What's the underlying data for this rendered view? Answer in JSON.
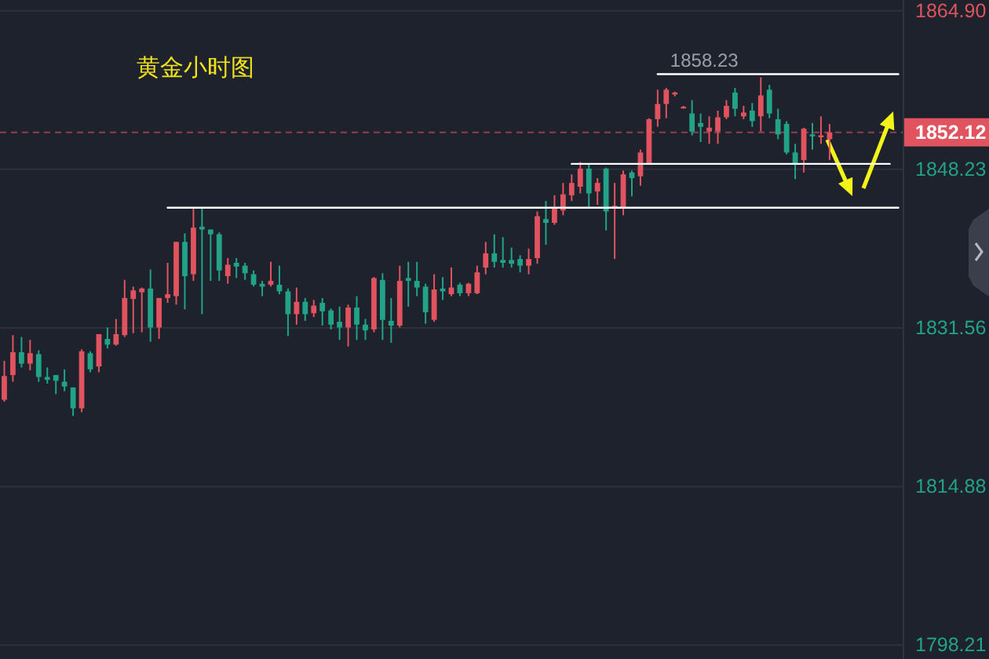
{
  "chart_data": {
    "type": "candlestick",
    "title": "黄金小时图",
    "categories": [
      null,
      null,
      null,
      null,
      null,
      null,
      null,
      null,
      null,
      null,
      null,
      null,
      null,
      null,
      null,
      null,
      null,
      null,
      null,
      null,
      null,
      null,
      null,
      null,
      null,
      null,
      null,
      null,
      null,
      null,
      null,
      null,
      null,
      null,
      null,
      null,
      null,
      null,
      null,
      null,
      null,
      null,
      null,
      null,
      null,
      null,
      null,
      null,
      null,
      null,
      null,
      null,
      null,
      null,
      null,
      null,
      null,
      null,
      null,
      null,
      null,
      null,
      null,
      null,
      null,
      null,
      null,
      null,
      null,
      null,
      null,
      null,
      null,
      null,
      null,
      null,
      null,
      null,
      null,
      null,
      null,
      null,
      null,
      null,
      null,
      null,
      null,
      null,
      null,
      null,
      null,
      null,
      null,
      null,
      null,
      null,
      null,
      null,
      null,
      null,
      null,
      null,
      null,
      null,
      null
    ],
    "ohlc": [
      [
        1824.0,
        1828.1,
        1823.8,
        1826.5
      ],
      [
        1826.6,
        1830.8,
        1825.9,
        1829.0
      ],
      [
        1829.0,
        1830.6,
        1827.4,
        1827.8
      ],
      [
        1827.8,
        1830.3,
        1827.1,
        1828.9
      ],
      [
        1828.8,
        1829.2,
        1825.9,
        1826.4
      ],
      [
        1826.4,
        1827.4,
        1825.7,
        1826.1
      ],
      [
        1826.6,
        1826.6,
        1824.6,
        1826.0
      ],
      [
        1825.9,
        1827.2,
        1824.9,
        1825.4
      ],
      [
        1825.3,
        1825.3,
        1822.3,
        1823.1
      ],
      [
        1823.1,
        1829.3,
        1822.7,
        1829.1
      ],
      [
        1828.9,
        1829.1,
        1826.9,
        1827.2
      ],
      [
        1827.5,
        1830.9,
        1826.9,
        1830.9
      ],
      [
        1830.4,
        1831.6,
        1829.4,
        1829.8
      ],
      [
        1829.8,
        1832.5,
        1829.7,
        1830.9
      ],
      [
        1830.8,
        1836.6,
        1830.6,
        1834.7
      ],
      [
        1834.6,
        1835.9,
        1831.0,
        1835.5
      ],
      [
        1835.3,
        1835.8,
        1831.1,
        1835.7
      ],
      [
        1835.7,
        1837.7,
        1830.1,
        1831.6
      ],
      [
        1831.6,
        1834.7,
        1830.4,
        1834.7
      ],
      [
        1834.7,
        1838.4,
        1834.2,
        1835.1
      ],
      [
        1834.9,
        1840.6,
        1834.0,
        1840.6
      ],
      [
        1840.6,
        1841.5,
        1833.5,
        1837.0
      ],
      [
        1837.2,
        1844.1,
        1836.5,
        1842.1
      ],
      [
        1842.2,
        1844.1,
        1833.0,
        1841.9
      ],
      [
        1841.9,
        1841.9,
        1836.5,
        1841.4
      ],
      [
        1841.4,
        1841.6,
        1836.5,
        1837.6
      ],
      [
        1837.0,
        1838.9,
        1836.2,
        1838.2
      ],
      [
        1838.4,
        1838.9,
        1836.8,
        1838.0
      ],
      [
        1838.1,
        1838.4,
        1836.6,
        1837.3
      ],
      [
        1837.2,
        1837.6,
        1835.9,
        1836.1
      ],
      [
        1836.2,
        1836.5,
        1834.9,
        1835.9
      ],
      [
        1836.1,
        1838.5,
        1835.9,
        1836.5
      ],
      [
        1836.1,
        1838.1,
        1835.1,
        1835.4
      ],
      [
        1835.4,
        1835.7,
        1830.7,
        1833.0
      ],
      [
        1833.0,
        1835.8,
        1831.9,
        1834.3
      ],
      [
        1834.3,
        1834.7,
        1832.3,
        1833.0
      ],
      [
        1833.1,
        1834.5,
        1832.7,
        1833.9
      ],
      [
        1834.2,
        1834.7,
        1831.8,
        1833.3
      ],
      [
        1833.4,
        1833.6,
        1831.4,
        1831.9
      ],
      [
        1832.2,
        1833.8,
        1830.3,
        1831.6
      ],
      [
        1831.6,
        1834.0,
        1829.6,
        1833.7
      ],
      [
        1833.7,
        1834.9,
        1830.3,
        1831.9
      ],
      [
        1831.9,
        1832.5,
        1830.3,
        1831.3
      ],
      [
        1831.4,
        1836.9,
        1831.1,
        1836.8
      ],
      [
        1836.6,
        1837.3,
        1830.3,
        1832.4
      ],
      [
        1832.3,
        1834.7,
        1830.0,
        1831.8
      ],
      [
        1831.8,
        1838.1,
        1831.6,
        1836.5
      ],
      [
        1836.8,
        1838.5,
        1833.8,
        1836.5
      ],
      [
        1836.5,
        1838.5,
        1834.9,
        1835.8
      ],
      [
        1835.9,
        1836.2,
        1832.0,
        1833.2
      ],
      [
        1832.4,
        1837.2,
        1832.2,
        1835.6
      ],
      [
        1835.7,
        1836.9,
        1834.5,
        1835.4
      ],
      [
        1835.1,
        1837.9,
        1834.9,
        1835.8
      ],
      [
        1836.1,
        1836.3,
        1834.9,
        1835.2
      ],
      [
        1835.2,
        1836.3,
        1834.9,
        1836.2
      ],
      [
        1835.2,
        1838.1,
        1835.1,
        1837.4
      ],
      [
        1837.9,
        1840.6,
        1837.2,
        1839.4
      ],
      [
        1839.4,
        1841.4,
        1837.9,
        1838.5
      ],
      [
        1838.7,
        1841.1,
        1837.9,
        1838.4
      ],
      [
        1838.7,
        1840.0,
        1837.9,
        1838.3
      ],
      [
        1838.8,
        1839.2,
        1837.4,
        1838.1
      ],
      [
        1838.1,
        1839.9,
        1837.2,
        1838.8
      ],
      [
        1838.9,
        1843.8,
        1838.3,
        1843.3
      ],
      [
        1843.0,
        1844.9,
        1840.3,
        1842.6
      ],
      [
        1842.6,
        1845.5,
        1842.4,
        1844.1
      ],
      [
        1843.9,
        1846.8,
        1843.4,
        1845.6
      ],
      [
        1845.5,
        1847.7,
        1844.9,
        1846.8
      ],
      [
        1846.4,
        1849.0,
        1845.7,
        1848.3
      ],
      [
        1848.3,
        1848.8,
        1844.2,
        1845.7
      ],
      [
        1845.9,
        1847.3,
        1844.5,
        1846.8
      ],
      [
        1848.3,
        1848.4,
        1841.8,
        1843.8
      ],
      [
        1844.1,
        1846.8,
        1838.8,
        1844.4
      ],
      [
        1844.2,
        1848.1,
        1843.4,
        1847.7
      ],
      [
        1847.9,
        1848.1,
        1845.4,
        1847.3
      ],
      [
        1847.5,
        1850.3,
        1846.5,
        1850.0
      ],
      [
        1848.8,
        1853.6,
        1848.7,
        1853.5
      ],
      [
        1853.5,
        1856.6,
        1852.7,
        1855.1
      ],
      [
        1855.1,
        1856.8,
        1853.6,
        1856.6
      ],
      [
        1856.1,
        1856.4,
        1855.9,
        1856.3
      ],
      [
        1854.7,
        1854.9,
        1854.6,
        1854.8
      ],
      [
        1854.1,
        1855.5,
        1851.8,
        1852.2
      ],
      [
        1853.1,
        1854.1,
        1851.1,
        1852.7
      ],
      [
        1852.2,
        1853.8,
        1850.9,
        1852.6
      ],
      [
        1852.2,
        1854.4,
        1850.9,
        1853.7
      ],
      [
        1853.7,
        1855.5,
        1853.5,
        1854.9
      ],
      [
        1856.3,
        1856.8,
        1853.8,
        1854.6
      ],
      [
        1853.8,
        1854.9,
        1853.5,
        1854.2
      ],
      [
        1854.4,
        1855.2,
        1852.7,
        1853.3
      ],
      [
        1853.8,
        1857.9,
        1852.2,
        1856.0
      ],
      [
        1856.6,
        1857.1,
        1853.6,
        1854.1
      ],
      [
        1853.5,
        1854.6,
        1851.4,
        1851.9
      ],
      [
        1853.0,
        1853.3,
        1849.8,
        1850.0
      ],
      [
        1850.0,
        1850.9,
        1847.2,
        1848.7
      ],
      [
        1849.2,
        1852.6,
        1847.9,
        1852.5
      ],
      [
        1851.9,
        1853.1,
        1850.3,
        1851.7
      ],
      [
        1851.6,
        1853.8,
        1850.9,
        1851.8
      ],
      [
        1851.4,
        1853.0,
        1849.2,
        1852.12
      ],
      null,
      null,
      null,
      null,
      null,
      null,
      null,
      null
    ],
    "colors": [
      "#e0535f",
      "#e0535f",
      "#22a388",
      "#e0535f",
      "#22a388",
      "#22a388",
      "#22a388",
      "#22a388",
      "#22a388",
      "#e0535f",
      "#22a388",
      "#e0535f",
      "#22a388",
      "#e0535f",
      "#e0535f",
      "#e0535f",
      "#e0535f",
      "#22a388",
      "#e0535f",
      "#e0535f",
      "#e0535f",
      "#22a388",
      "#e0535f",
      "#22a388",
      "#22a388",
      "#22a388",
      "#e0535f",
      "#22a388",
      "#22a388",
      "#22a388",
      "#22a388",
      "#e0535f",
      "#22a388",
      "#22a388",
      "#e0535f",
      "#22a388",
      "#e0535f",
      "#22a388",
      "#22a388",
      "#22a388",
      "#e0535f",
      "#22a388",
      "#22a388",
      "#e0535f",
      "#22a388",
      "#22a388",
      "#e0535f",
      "#22a388",
      "#22a388",
      "#22a388",
      "#e0535f",
      "#22a388",
      "#e0535f",
      "#22a388",
      "#e0535f",
      "#e0535f",
      "#e0535f",
      "#22a388",
      "#22a388",
      "#22a388",
      "#22a388",
      "#e0535f",
      "#e0535f",
      "#22a388",
      "#e0535f",
      "#e0535f",
      "#e0535f",
      "#e0535f",
      "#22a388",
      "#e0535f",
      "#22a388",
      "#e0535f",
      "#e0535f",
      "#22a388",
      "#e0535f",
      "#e0535f",
      "#e0535f",
      "#e0535f",
      "#e0535f",
      "#e0535f",
      "#22a388",
      "#22a388",
      "#e0535f",
      "#e0535f",
      "#e0535f",
      "#22a388",
      "#e0535f",
      "#22a388",
      "#e0535f",
      "#22a388",
      "#22a388",
      "#22a388",
      "#22a388",
      "#e0535f",
      "#22a388",
      "#e0535f",
      "#e0535f",
      null,
      null,
      null,
      null,
      null,
      null,
      null,
      null
    ],
    "ylim": [
      1797.74,
      1866.03
    ],
    "yticks": [
      {
        "value": 1864.9,
        "label": "1864.90"
      },
      1848.23,
      1831.56,
      1814.88,
      1798.21
    ],
    "tick_labels": "y",
    "grid": "y",
    "ref_lines": [
      {
        "axis": "y",
        "value": 1852.12,
        "label": "1852.12",
        "color": "#e0535f",
        "line_style": "dashed"
      }
    ],
    "series": [
      {
        "type": "line",
        "color": "#ffffff",
        "values": [
          null,
          null,
          null,
          null,
          null,
          null,
          null,
          null,
          null,
          null,
          null,
          null,
          null,
          null,
          null,
          null,
          null,
          null,
          null,
          null,
          null,
          null,
          null,
          null,
          null,
          null,
          null,
          null,
          null,
          null,
          null,
          null,
          null,
          null,
          null,
          null,
          null,
          null,
          null,
          null,
          null,
          null,
          null,
          null,
          null,
          null,
          null,
          null,
          null,
          null,
          null,
          null,
          null,
          null,
          null,
          null,
          null,
          null,
          null,
          null,
          null,
          null,
          null,
          null,
          null,
          null,
          null,
          null,
          null,
          null,
          null,
          null,
          null,
          null,
          null,
          null,
          1858.23,
          1858.23,
          1858.23,
          1858.23,
          1858.23,
          1858.23,
          1858.23,
          1858.23,
          1858.23,
          1858.23,
          1858.23,
          1858.23,
          1858.23,
          1858.23,
          1858.23,
          1858.23,
          1858.23,
          1858.23,
          1858.23,
          1858.23,
          1858.23,
          1858.23,
          1858.23,
          1858.23,
          1858.23,
          1858.23,
          1858.23,
          1858.23,
          1858.23
        ],
        "value_labels": [
          null,
          null,
          null,
          null,
          null,
          null,
          null,
          null,
          null,
          null,
          null,
          null,
          null,
          null,
          null,
          null,
          null,
          null,
          null,
          null,
          null,
          null,
          null,
          null,
          null,
          null,
          null,
          null,
          null,
          null,
          null,
          null,
          null,
          null,
          null,
          null,
          null,
          null,
          null,
          null,
          null,
          null,
          null,
          null,
          null,
          null,
          null,
          null,
          null,
          null,
          null,
          null,
          null,
          null,
          null,
          null,
          null,
          null,
          null,
          null,
          null,
          null,
          null,
          null,
          null,
          null,
          null,
          null,
          null,
          null,
          null,
          null,
          null,
          null,
          null,
          null,
          "1858.23",
          null,
          null,
          null,
          null,
          null,
          null,
          null,
          null,
          null,
          null,
          null,
          null,
          null,
          null,
          null,
          null,
          null,
          null,
          null,
          null,
          null,
          null,
          null,
          null,
          null,
          null,
          null,
          null
        ]
      },
      {
        "type": "line",
        "color": "#ffffff",
        "values": [
          null,
          null,
          null,
          null,
          null,
          null,
          null,
          null,
          null,
          null,
          null,
          null,
          null,
          null,
          null,
          null,
          null,
          null,
          null,
          null,
          null,
          null,
          null,
          null,
          null,
          null,
          null,
          null,
          null,
          null,
          null,
          null,
          null,
          null,
          null,
          null,
          null,
          null,
          null,
          null,
          null,
          null,
          null,
          null,
          null,
          null,
          null,
          null,
          null,
          null,
          null,
          null,
          null,
          null,
          null,
          null,
          null,
          null,
          null,
          null,
          null,
          null,
          null,
          null,
          null,
          null,
          1848.8,
          1848.8,
          1848.8,
          1848.8,
          1848.8,
          1848.8,
          1848.8,
          1848.8,
          1848.8,
          1848.8,
          1848.8,
          1848.8,
          1848.8,
          1848.8,
          1848.8,
          1848.8,
          1848.8,
          1848.8,
          1848.8,
          1848.8,
          1848.8,
          1848.8,
          1848.8,
          1848.8,
          1848.8,
          1848.8,
          1848.8,
          1848.8,
          1848.8,
          1848.8,
          1848.8,
          1848.8,
          1848.8,
          1848.8,
          1848.8,
          1848.8,
          1848.8,
          1848.8,
          null
        ]
      },
      {
        "type": "line",
        "color": "#ffffff",
        "values": [
          null,
          null,
          null,
          null,
          null,
          null,
          null,
          null,
          null,
          null,
          null,
          null,
          null,
          null,
          null,
          null,
          null,
          null,
          null,
          1844.2,
          1844.2,
          1844.2,
          1844.2,
          1844.2,
          1844.2,
          1844.2,
          1844.2,
          1844.2,
          1844.2,
          1844.2,
          1844.2,
          1844.2,
          1844.2,
          1844.2,
          1844.2,
          1844.2,
          1844.2,
          1844.2,
          1844.2,
          1844.2,
          1844.2,
          1844.2,
          1844.2,
          1844.2,
          1844.2,
          1844.2,
          1844.2,
          1844.2,
          1844.2,
          1844.2,
          1844.2,
          1844.2,
          1844.2,
          1844.2,
          1844.2,
          1844.2,
          1844.2,
          1844.2,
          1844.2,
          1844.2,
          1844.2,
          1844.2,
          1844.2,
          1844.2,
          1844.2,
          1844.2,
          1844.2,
          1844.2,
          1844.2,
          1844.2,
          1844.2,
          1844.2,
          1844.2,
          1844.2,
          1844.2,
          1844.2,
          1844.2,
          1844.2,
          1844.2,
          1844.2,
          1844.2,
          1844.2,
          1844.2,
          1844.2,
          1844.2,
          1844.2,
          1844.2,
          1844.2,
          1844.2,
          1844.2,
          1844.2,
          1844.2,
          1844.2,
          1844.2,
          1844.2,
          1844.2,
          1844.2,
          1844.2,
          1844.2,
          1844.2,
          1844.2,
          1844.2,
          1844.2,
          1844.2,
          1844.2
        ]
      }
    ]
  }
}
